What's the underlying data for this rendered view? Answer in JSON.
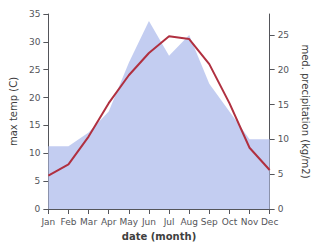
{
  "chart_data": {
    "type": "line",
    "categories": [
      "Jan",
      "Feb",
      "Mar",
      "Apr",
      "May",
      "Jun",
      "Jul",
      "Aug",
      "Sep",
      "Oct",
      "Nov",
      "Dec"
    ],
    "xlabel": "date (month)",
    "ylabel": "max temp (C)",
    "y2label": "med. precipitation (kg/m2)",
    "series": [
      {
        "type": "area",
        "color": "#b8c4ee",
        "axis": "y2",
        "values": [
          9,
          9,
          11,
          14,
          21,
          27,
          22,
          25,
          18,
          14,
          10,
          10
        ]
      },
      {
        "type": "line",
        "color": "#b03040",
        "values": [
          6.0,
          8.0,
          13.0,
          19.0,
          24.0,
          28.0,
          31.0,
          30.5,
          26.0,
          19.0,
          11.0,
          7.0
        ]
      }
    ],
    "ylim": [
      0,
      35
    ],
    "yticks": [
      0,
      5,
      10,
      15,
      20,
      25,
      30,
      35
    ],
    "y2lim": [
      0,
      28.0
    ],
    "y2ticks": [
      0,
      5,
      10,
      15,
      20,
      25
    ],
    "grid": false
  }
}
